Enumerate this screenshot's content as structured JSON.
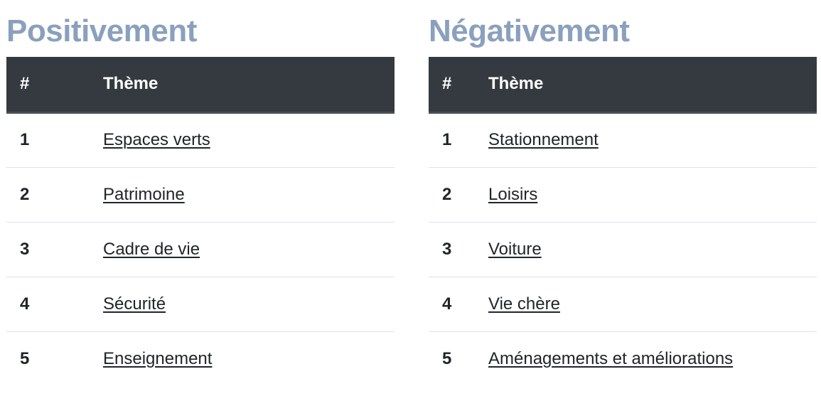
{
  "positive": {
    "title": "Positivement",
    "col_num": "#",
    "col_theme": "Thème",
    "rows": [
      {
        "rank": "1",
        "theme": "Espaces verts"
      },
      {
        "rank": "2",
        "theme": "Patrimoine"
      },
      {
        "rank": "3",
        "theme": "Cadre de vie"
      },
      {
        "rank": "4",
        "theme": "Sécurité"
      },
      {
        "rank": "5",
        "theme": "Enseignement"
      }
    ]
  },
  "negative": {
    "title": "Négativement",
    "col_num": "#",
    "col_theme": "Thème",
    "rows": [
      {
        "rank": "1",
        "theme": "Stationnement"
      },
      {
        "rank": "2",
        "theme": "Loisirs"
      },
      {
        "rank": "3",
        "theme": "Voiture"
      },
      {
        "rank": "4",
        "theme": "Vie chère"
      },
      {
        "rank": "5",
        "theme": "Aménagements et améliorations"
      }
    ]
  },
  "colors": {
    "title": "#8aa0bd",
    "header_bg": "#343a40",
    "text": "#212529",
    "divider": "#dee2e6"
  }
}
